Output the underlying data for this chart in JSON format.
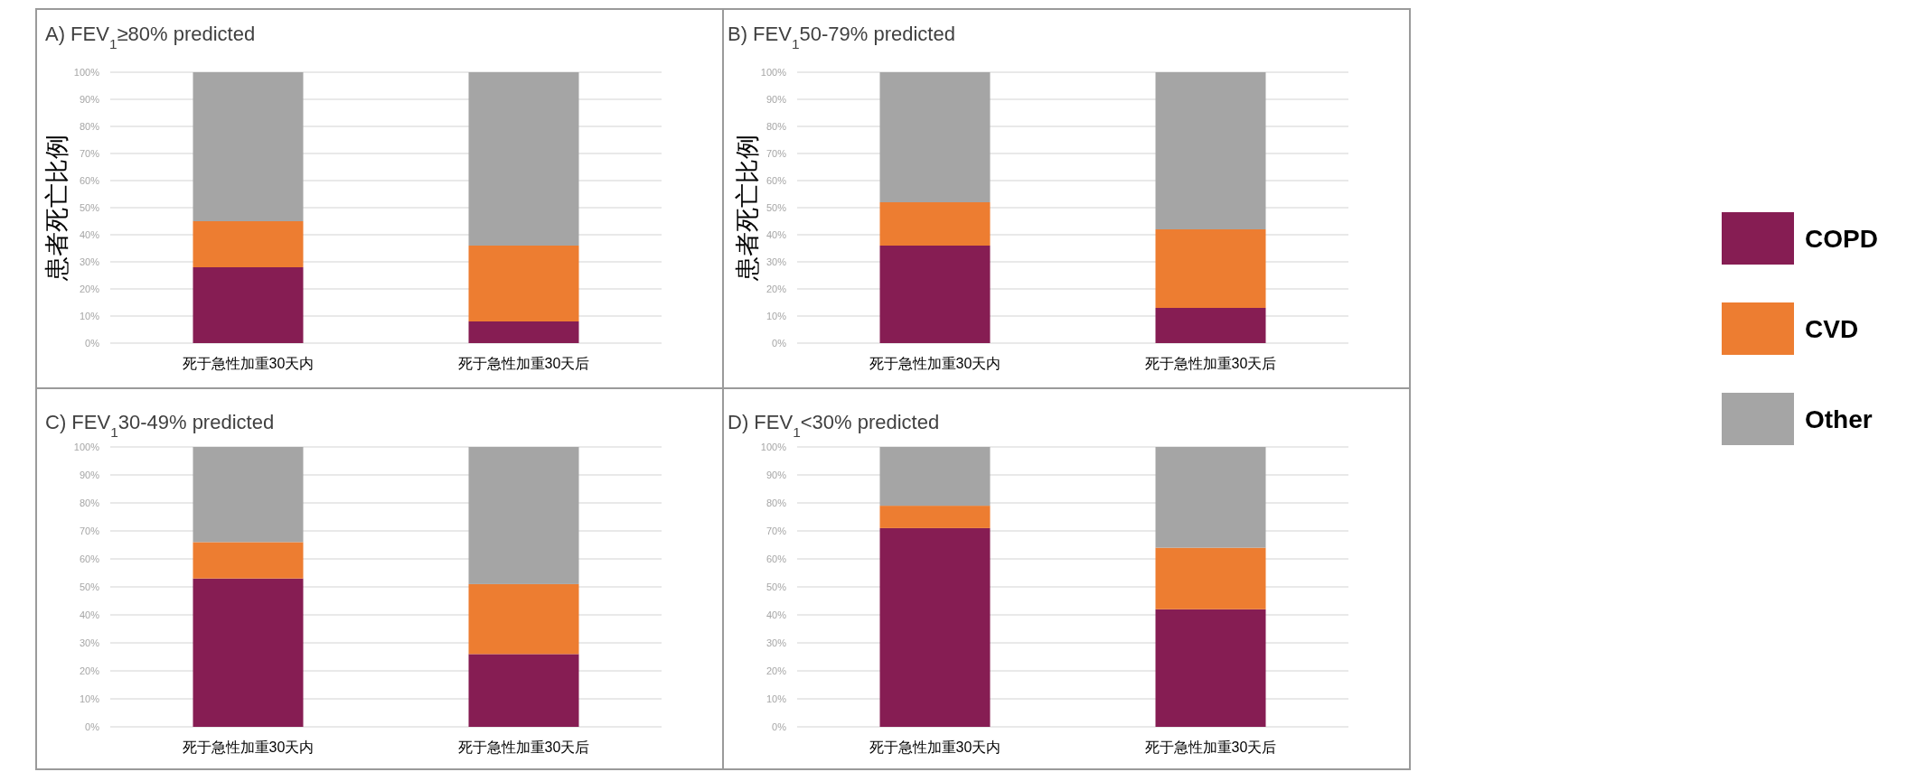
{
  "chart_data": [
    {
      "type": "bar",
      "stacked": true,
      "title": "A) FEV$_{1}$≥80% predicted",
      "ylabel": "患者死亡比例",
      "categories": [
        "死于急性加重30天内",
        "死于急性加重30天后"
      ],
      "ylim": [
        0,
        100
      ],
      "yticks": [
        {
          "value": 0,
          "label": "0%"
        },
        {
          "value": 10,
          "label": "10%"
        },
        {
          "value": 20,
          "label": "20%"
        },
        {
          "value": 30,
          "label": "30%"
        },
        {
          "value": 40,
          "label": "40%"
        },
        {
          "value": 50,
          "label": "50%"
        },
        {
          "value": 60,
          "label": "60%"
        },
        {
          "value": 70,
          "label": "70%"
        },
        {
          "value": 80,
          "label": "80%"
        },
        {
          "value": 90,
          "label": "90%"
        },
        {
          "value": 100,
          "label": "100%"
        }
      ],
      "grid": "y",
      "legend": "right",
      "series": [
        {
          "name": "COPD",
          "color": "#861d53",
          "values": [
            28,
            8
          ]
        },
        {
          "name": "CVD",
          "color": "#ed7d31",
          "values": [
            17,
            28
          ]
        },
        {
          "name": "Other",
          "color": "#a5a5a5",
          "values": [
            55,
            64
          ]
        }
      ]
    },
    {
      "type": "bar",
      "stacked": true,
      "title": "B) FEV$_{1}$50-79% predicted",
      "ylabel": "患者死亡比例",
      "categories": [
        "死于急性加重30天内",
        "死于急性加重30天后"
      ],
      "ylim": [
        0,
        100
      ],
      "yticks": [
        {
          "value": 0,
          "label": "0%"
        },
        {
          "value": 10,
          "label": "10%"
        },
        {
          "value": 20,
          "label": "20%"
        },
        {
          "value": 30,
          "label": "30%"
        },
        {
          "value": 40,
          "label": "40%"
        },
        {
          "value": 50,
          "label": "50%"
        },
        {
          "value": 60,
          "label": "60%"
        },
        {
          "value": 70,
          "label": "70%"
        },
        {
          "value": 80,
          "label": "80%"
        },
        {
          "value": 90,
          "label": "90%"
        },
        {
          "value": 100,
          "label": "100%"
        }
      ],
      "grid": "y",
      "series": [
        {
          "color": "#861d53",
          "values": [
            36,
            13
          ]
        },
        {
          "color": "#ed7d31",
          "values": [
            16,
            29
          ]
        },
        {
          "color": "#a5a5a5",
          "values": [
            48,
            58
          ]
        }
      ]
    },
    {
      "type": "bar",
      "stacked": true,
      "title": "C) FEV$_{1}$30-49% predicted",
      "categories": [
        "死于急性加重30天内",
        "死于急性加重30天后"
      ],
      "ylim": [
        0,
        100
      ],
      "yticks": [
        {
          "value": 0,
          "label": "0%"
        },
        {
          "value": 10,
          "label": "10%"
        },
        {
          "value": 20,
          "label": "20%"
        },
        {
          "value": 30,
          "label": "30%"
        },
        {
          "value": 40,
          "label": "40%"
        },
        {
          "value": 50,
          "label": "50%"
        },
        {
          "value": 60,
          "label": "60%"
        },
        {
          "value": 70,
          "label": "70%"
        },
        {
          "value": 80,
          "label": "80%"
        },
        {
          "value": 90,
          "label": "90%"
        },
        {
          "value": 100,
          "label": "100%"
        }
      ],
      "grid": "y",
      "series": [
        {
          "color": "#861d53",
          "values": [
            53,
            26
          ]
        },
        {
          "color": "#ed7d31",
          "values": [
            13,
            25
          ]
        },
        {
          "color": "#a5a5a5",
          "values": [
            34,
            49
          ]
        }
      ]
    },
    {
      "type": "bar",
      "stacked": true,
      "title": "D) FEV$_{1}$<30% predicted",
      "categories": [
        "死于急性加重30天内",
        "死于急性加重30天后"
      ],
      "ylim": [
        0,
        100
      ],
      "yticks": [
        {
          "value": 0,
          "label": "0%"
        },
        {
          "value": 10,
          "label": "10%"
        },
        {
          "value": 20,
          "label": "20%"
        },
        {
          "value": 30,
          "label": "30%"
        },
        {
          "value": 40,
          "label": "40%"
        },
        {
          "value": 50,
          "label": "50%"
        },
        {
          "value": 60,
          "label": "60%"
        },
        {
          "value": 70,
          "label": "70%"
        },
        {
          "value": 80,
          "label": "80%"
        },
        {
          "value": 90,
          "label": "90%"
        },
        {
          "value": 100,
          "label": "100%"
        }
      ],
      "grid": "y",
      "series": [
        {
          "color": "#861d53",
          "values": [
            71,
            42
          ]
        },
        {
          "color": "#ed7d31",
          "values": [
            8,
            22
          ]
        },
        {
          "color": "#a5a5a5",
          "values": [
            21,
            36
          ]
        }
      ]
    }
  ]
}
